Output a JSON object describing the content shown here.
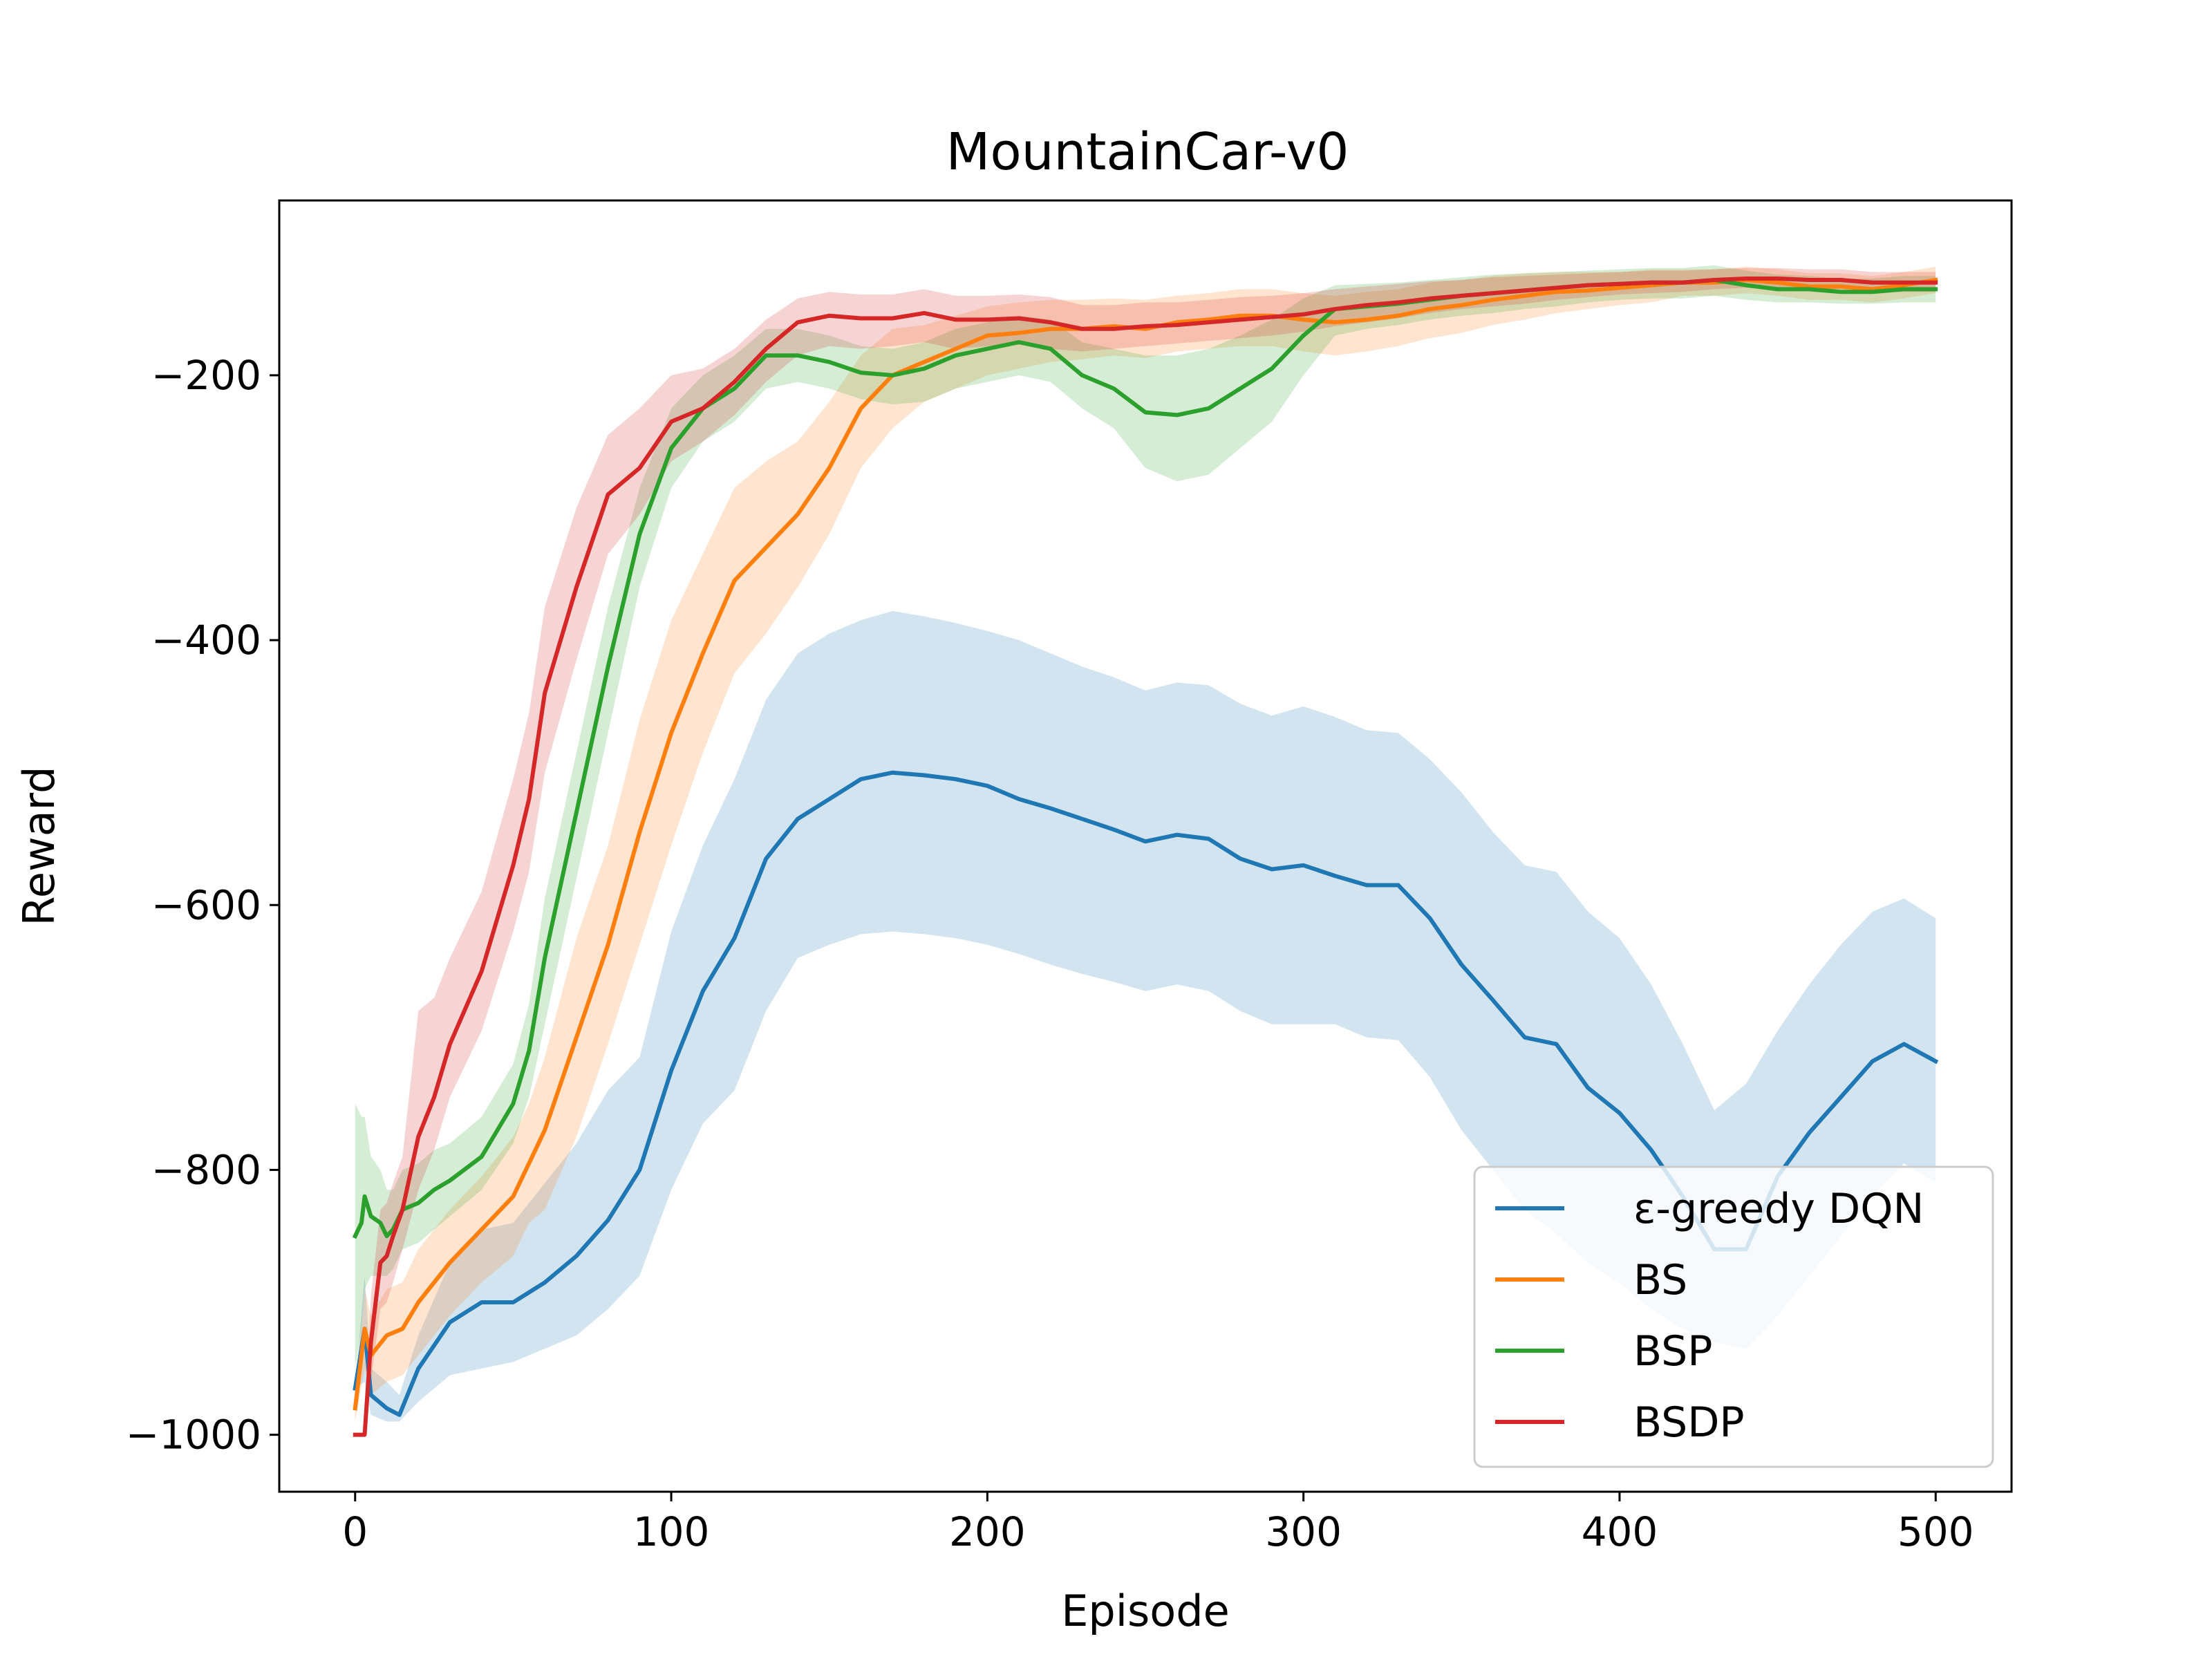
{
  "chart_data": {
    "type": "line",
    "title": "MountainCar-v0",
    "xlabel": "Episode",
    "ylabel": "Reward",
    "xlim": [
      -24,
      524
    ],
    "ylim": [
      -1043,
      -68
    ],
    "xticks": [
      0,
      100,
      200,
      300,
      400,
      500
    ],
    "yticks": [
      -1000,
      -800,
      -600,
      -400,
      -200
    ],
    "xtick_labels": [
      "0",
      "100",
      "200",
      "300",
      "400",
      "500"
    ],
    "ytick_labels": [
      "−1000",
      "−800",
      "−600",
      "−400",
      "−200"
    ],
    "grid": false,
    "legend_position": "bottom-right",
    "series": [
      {
        "name": "ε-greedy DQN",
        "color": "#1f77b4",
        "x": [
          0,
          3,
          5,
          10,
          14,
          20,
          30,
          40,
          50,
          60,
          70,
          80,
          90,
          100,
          110,
          120,
          130,
          140,
          150,
          160,
          170,
          180,
          190,
          200,
          210,
          220,
          230,
          240,
          250,
          260,
          270,
          280,
          290,
          300,
          310,
          320,
          330,
          340,
          350,
          360,
          370,
          380,
          390,
          400,
          410,
          420,
          430,
          440,
          450,
          460,
          470,
          480,
          490,
          500
        ],
        "y": [
          -965,
          -920,
          -970,
          -980,
          -985,
          -950,
          -915,
          -900,
          -900,
          -885,
          -865,
          -838,
          -800,
          -725,
          -665,
          -625,
          -565,
          -535,
          -520,
          -505,
          -500,
          -502,
          -505,
          -510,
          -520,
          -527,
          -535,
          -543,
          -552,
          -547,
          -550,
          -565,
          -573,
          -570,
          -578,
          -585,
          -585,
          -610,
          -645,
          -672,
          -700,
          -705,
          -738,
          -757,
          -785,
          -820,
          -860,
          -860,
          -805,
          -772,
          -745,
          -718,
          -705,
          -718
        ],
        "lower": [
          -965,
          -960,
          -985,
          -990,
          -990,
          -975,
          -955,
          -950,
          -945,
          -935,
          -925,
          -905,
          -880,
          -815,
          -765,
          -740,
          -680,
          -640,
          -630,
          -622,
          -620,
          -622,
          -625,
          -630,
          -637,
          -645,
          -652,
          -658,
          -665,
          -660,
          -665,
          -680,
          -690,
          -690,
          -690,
          -700,
          -702,
          -730,
          -770,
          -800,
          -830,
          -848,
          -870,
          -885,
          -905,
          -920,
          -930,
          -935,
          -910,
          -880,
          -850,
          -820,
          -795,
          -810
        ],
        "upper": [
          -965,
          -880,
          -950,
          -960,
          -970,
          -925,
          -870,
          -845,
          -840,
          -810,
          -780,
          -740,
          -715,
          -620,
          -555,
          -505,
          -445,
          -410,
          -395,
          -385,
          -378,
          -382,
          -387,
          -393,
          -400,
          -410,
          -420,
          -428,
          -438,
          -432,
          -434,
          -448,
          -457,
          -450,
          -458,
          -468,
          -470,
          -490,
          -515,
          -545,
          -570,
          -575,
          -605,
          -625,
          -660,
          -705,
          -755,
          -735,
          -695,
          -660,
          -630,
          -605,
          -595,
          -610
        ]
      },
      {
        "name": "BS",
        "color": "#ff7f0e",
        "x": [
          0,
          3,
          5,
          10,
          15,
          20,
          30,
          40,
          50,
          55,
          60,
          70,
          80,
          90,
          100,
          110,
          120,
          130,
          140,
          150,
          160,
          170,
          180,
          190,
          200,
          210,
          220,
          230,
          240,
          250,
          260,
          270,
          280,
          290,
          300,
          310,
          320,
          330,
          340,
          350,
          360,
          370,
          380,
          390,
          400,
          410,
          420,
          430,
          440,
          450,
          460,
          470,
          480,
          490,
          500
        ],
        "y": [
          -980,
          -920,
          -940,
          -925,
          -920,
          -900,
          -870,
          -845,
          -820,
          -795,
          -770,
          -700,
          -630,
          -545,
          -470,
          -410,
          -355,
          -330,
          -305,
          -270,
          -225,
          -200,
          -190,
          -180,
          -170,
          -168,
          -165,
          -165,
          -163,
          -165,
          -160,
          -158,
          -155,
          -155,
          -158,
          -160,
          -158,
          -155,
          -150,
          -147,
          -143,
          -140,
          -137,
          -136,
          -134,
          -132,
          -130,
          -130,
          -128,
          -130,
          -133,
          -133,
          -135,
          -132,
          -128
        ],
        "lower": [
          -990,
          -950,
          -970,
          -960,
          -955,
          -940,
          -910,
          -885,
          -865,
          -840,
          -830,
          -775,
          -705,
          -630,
          -555,
          -485,
          -425,
          -395,
          -360,
          -320,
          -270,
          -240,
          -220,
          -210,
          -200,
          -195,
          -190,
          -188,
          -185,
          -187,
          -182,
          -180,
          -178,
          -178,
          -182,
          -185,
          -182,
          -178,
          -172,
          -168,
          -162,
          -158,
          -153,
          -150,
          -147,
          -145,
          -140,
          -140,
          -138,
          -140,
          -143,
          -143,
          -145,
          -142,
          -138
        ],
        "upper": [
          -970,
          -890,
          -910,
          -890,
          -885,
          -860,
          -830,
          -805,
          -775,
          -750,
          -715,
          -625,
          -555,
          -460,
          -385,
          -335,
          -285,
          -265,
          -250,
          -220,
          -185,
          -165,
          -162,
          -155,
          -148,
          -145,
          -143,
          -143,
          -142,
          -143,
          -140,
          -138,
          -135,
          -135,
          -138,
          -140,
          -137,
          -135,
          -130,
          -128,
          -125,
          -123,
          -122,
          -122,
          -122,
          -120,
          -120,
          -120,
          -118,
          -120,
          -123,
          -123,
          -125,
          -122,
          -118
        ]
      },
      {
        "name": "BSP",
        "color": "#2ca02c",
        "x": [
          0,
          2,
          3,
          5,
          8,
          10,
          12,
          15,
          20,
          25,
          30,
          40,
          50,
          55,
          60,
          70,
          80,
          90,
          100,
          110,
          120,
          130,
          140,
          150,
          160,
          170,
          180,
          190,
          200,
          210,
          220,
          230,
          240,
          250,
          260,
          270,
          280,
          290,
          300,
          310,
          320,
          330,
          340,
          350,
          360,
          370,
          380,
          390,
          400,
          410,
          420,
          430,
          440,
          450,
          460,
          470,
          480,
          490,
          500
        ],
        "y": [
          -850,
          -840,
          -820,
          -835,
          -840,
          -850,
          -845,
          -830,
          -825,
          -815,
          -808,
          -790,
          -750,
          -710,
          -640,
          -530,
          -420,
          -320,
          -255,
          -225,
          -210,
          -185,
          -185,
          -190,
          -198,
          -200,
          -195,
          -185,
          -180,
          -175,
          -180,
          -200,
          -210,
          -228,
          -230,
          -225,
          -210,
          -195,
          -170,
          -150,
          -148,
          -146,
          -143,
          -140,
          -138,
          -136,
          -134,
          -132,
          -131,
          -130,
          -130,
          -128,
          -132,
          -135,
          -135,
          -137,
          -137,
          -135,
          -135
        ],
        "lower": [
          -950,
          -920,
          -890,
          -880,
          -880,
          -880,
          -875,
          -860,
          -855,
          -845,
          -835,
          -815,
          -780,
          -745,
          -690,
          -580,
          -470,
          -360,
          -285,
          -250,
          -235,
          -210,
          -205,
          -210,
          -218,
          -222,
          -220,
          -210,
          -205,
          -200,
          -205,
          -225,
          -240,
          -270,
          -280,
          -275,
          -255,
          -235,
          -200,
          -170,
          -165,
          -162,
          -158,
          -155,
          -153,
          -150,
          -148,
          -145,
          -143,
          -142,
          -142,
          -140,
          -143,
          -145,
          -145,
          -146,
          -146,
          -145,
          -145
        ],
        "upper": [
          -750,
          -760,
          -760,
          -790,
          -800,
          -815,
          -815,
          -800,
          -795,
          -785,
          -780,
          -760,
          -720,
          -675,
          -595,
          -485,
          -375,
          -285,
          -225,
          -200,
          -185,
          -165,
          -165,
          -170,
          -178,
          -180,
          -175,
          -165,
          -160,
          -155,
          -158,
          -175,
          -180,
          -185,
          -185,
          -180,
          -170,
          -158,
          -142,
          -132,
          -131,
          -130,
          -128,
          -126,
          -124,
          -123,
          -122,
          -121,
          -120,
          -119,
          -119,
          -117,
          -121,
          -124,
          -125,
          -127,
          -127,
          -125,
          -125
        ]
      },
      {
        "name": "BSDP",
        "color": "#d62728",
        "x": [
          0,
          3,
          5,
          8,
          10,
          12,
          15,
          20,
          25,
          30,
          40,
          50,
          55,
          60,
          70,
          80,
          90,
          100,
          110,
          120,
          130,
          140,
          150,
          160,
          170,
          180,
          190,
          200,
          210,
          220,
          230,
          240,
          250,
          260,
          270,
          280,
          290,
          300,
          310,
          320,
          330,
          340,
          350,
          360,
          370,
          380,
          390,
          400,
          410,
          420,
          430,
          440,
          450,
          460,
          470,
          480,
          490,
          500
        ],
        "y": [
          -1000,
          -1000,
          -930,
          -870,
          -865,
          -850,
          -830,
          -775,
          -745,
          -705,
          -650,
          -570,
          -520,
          -440,
          -360,
          -290,
          -270,
          -235,
          -225,
          -205,
          -180,
          -160,
          -155,
          -157,
          -157,
          -153,
          -158,
          -158,
          -157,
          -160,
          -165,
          -165,
          -163,
          -162,
          -160,
          -158,
          -156,
          -154,
          -150,
          -147,
          -145,
          -142,
          -140,
          -138,
          -136,
          -134,
          -132,
          -131,
          -130,
          -130,
          -128,
          -127,
          -127,
          -128,
          -128,
          -130,
          -130,
          -130
        ],
        "lower": [
          -1000,
          -1000,
          -960,
          -905,
          -900,
          -885,
          -860,
          -815,
          -785,
          -745,
          -695,
          -620,
          -575,
          -500,
          -415,
          -335,
          -305,
          -265,
          -250,
          -230,
          -205,
          -185,
          -178,
          -180,
          -178,
          -175,
          -180,
          -178,
          -177,
          -180,
          -182,
          -180,
          -178,
          -176,
          -174,
          -172,
          -170,
          -167,
          -163,
          -160,
          -157,
          -153,
          -150,
          -148,
          -146,
          -143,
          -141,
          -139,
          -138,
          -137,
          -135,
          -134,
          -134,
          -135,
          -135,
          -137,
          -137,
          -137
        ],
        "upper": [
          -1000,
          -1000,
          -895,
          -830,
          -825,
          -810,
          -790,
          -680,
          -670,
          -640,
          -590,
          -505,
          -455,
          -375,
          -300,
          -245,
          -225,
          -200,
          -195,
          -180,
          -158,
          -142,
          -137,
          -139,
          -139,
          -135,
          -140,
          -140,
          -139,
          -141,
          -147,
          -147,
          -145,
          -145,
          -143,
          -141,
          -140,
          -138,
          -135,
          -133,
          -131,
          -129,
          -128,
          -126,
          -125,
          -124,
          -123,
          -122,
          -121,
          -121,
          -120,
          -119,
          -119,
          -120,
          -120,
          -122,
          -122,
          -122
        ]
      }
    ]
  }
}
